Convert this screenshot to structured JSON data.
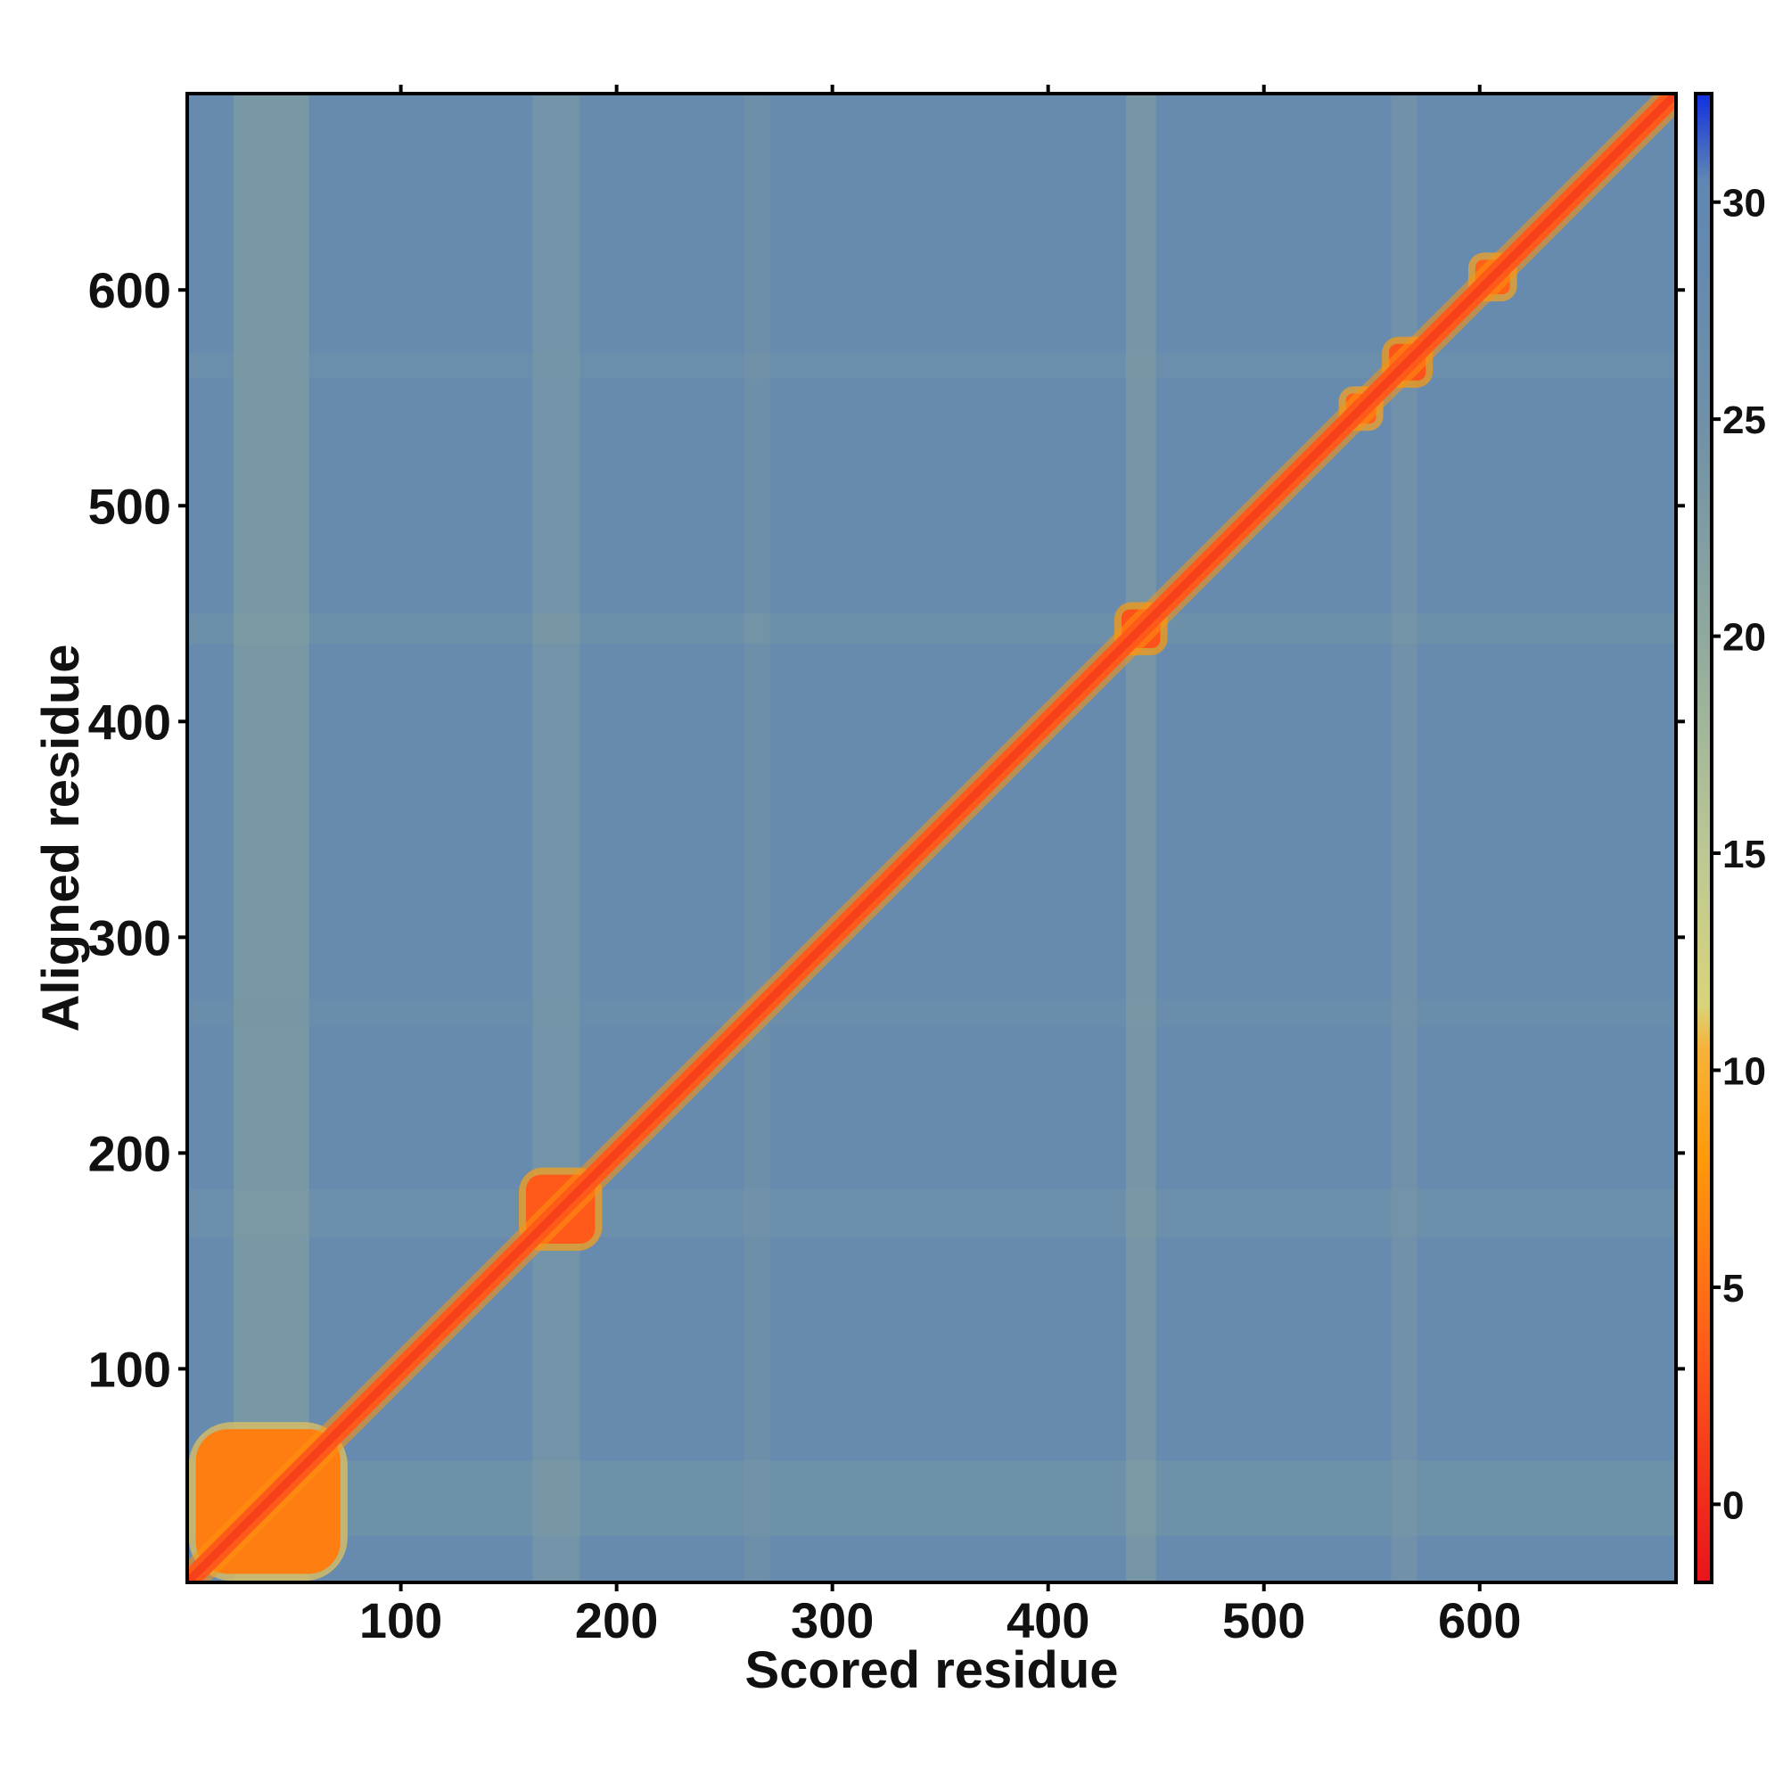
{
  "chart_data": {
    "type": "heatmap",
    "title": "",
    "xlabel": "Scored residue",
    "ylabel": "Aligned residue",
    "xlim": [
      1,
      691
    ],
    "ylim": [
      1,
      691
    ],
    "x_ticks": [
      100,
      200,
      300,
      400,
      500,
      600
    ],
    "y_ticks": [
      100,
      200,
      300,
      400,
      500,
      600
    ],
    "colorbar": {
      "ticks": [
        0,
        5,
        10,
        15,
        20,
        25,
        30
      ],
      "range": [
        -1.8,
        32.5
      ],
      "stops": [
        {
          "value": -1.8,
          "color": "#e8141b"
        },
        {
          "value": 3.5,
          "color": "#ff5a1a"
        },
        {
          "value": 8,
          "color": "#ff9a0a"
        },
        {
          "value": 10.5,
          "color": "#f6b33a"
        },
        {
          "value": 11.5,
          "color": "#d9d47a"
        },
        {
          "value": 15,
          "color": "#bcc894"
        },
        {
          "value": 20,
          "color": "#8fa99e"
        },
        {
          "value": 25,
          "color": "#6f90a8"
        },
        {
          "value": 30.5,
          "color": "#5f87b3"
        },
        {
          "value": 32.5,
          "color": "#1030e0"
        }
      ]
    },
    "background_value": 28,
    "diagonal_value": 1.5,
    "domain_blocks": [
      {
        "start": 5,
        "end": 72,
        "value": 6
      },
      {
        "start": 158,
        "end": 190,
        "value": 3.5
      },
      {
        "start": 434,
        "end": 452,
        "value": 3
      },
      {
        "start": 538,
        "end": 552,
        "value": 4
      },
      {
        "start": 558,
        "end": 575,
        "value": 3
      },
      {
        "start": 598,
        "end": 614,
        "value": 4
      }
    ],
    "lighter_bands": [
      {
        "center": 40,
        "width": 35,
        "value": 20
      },
      {
        "center": 172,
        "width": 22,
        "value": 22
      },
      {
        "center": 265,
        "width": 12,
        "value": 24
      },
      {
        "center": 443,
        "width": 14,
        "value": 21
      },
      {
        "center": 565,
        "width": 12,
        "value": 23
      }
    ]
  }
}
